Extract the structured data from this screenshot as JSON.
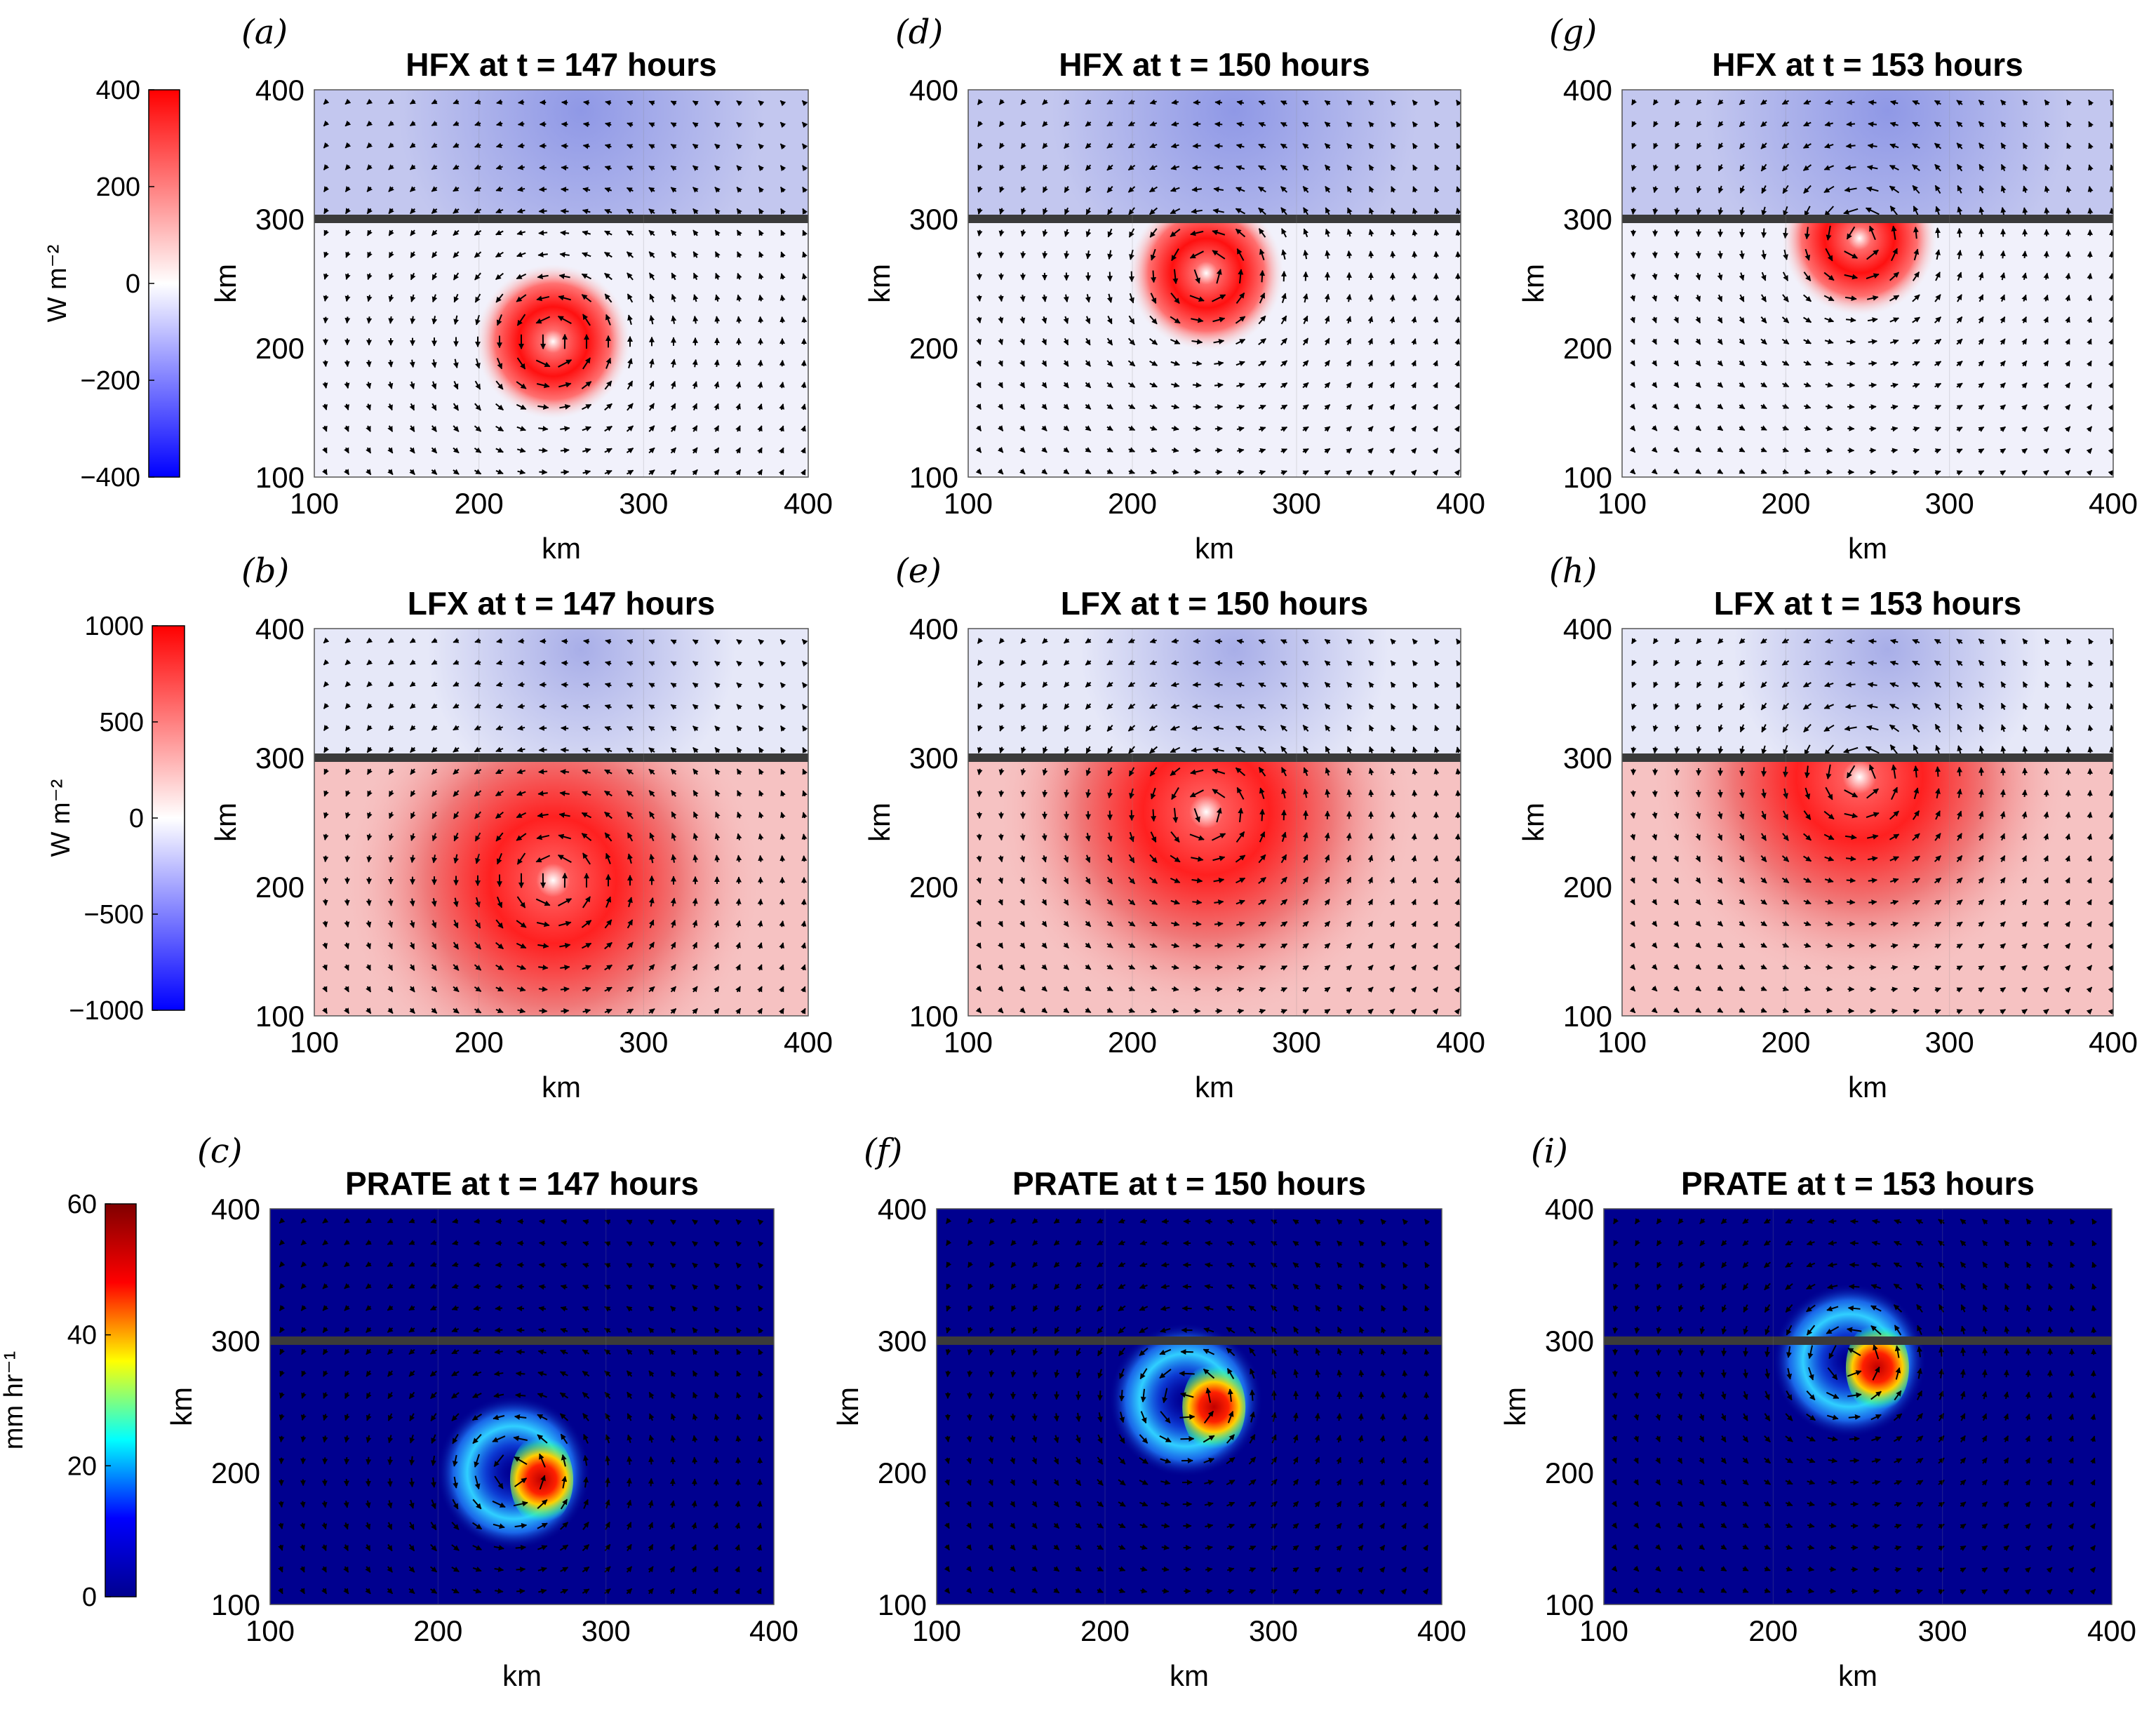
{
  "chart_data": [
    {
      "panel": "(a)",
      "type": "heatmap",
      "title": "HFX at t = 147 hours",
      "variable": "HFX",
      "time_hours": 147,
      "xlabel": "km",
      "ylabel": "km",
      "xlim": [
        100,
        400
      ],
      "ylim": [
        100,
        400
      ],
      "xticks": [
        "100",
        "200",
        "300",
        "400"
      ],
      "yticks": [
        "100",
        "200",
        "300",
        "400"
      ],
      "coast_y_km": 300,
      "vortex_center_km": [
        245,
        205
      ],
      "peak_value": 400
    },
    {
      "panel": "(b)",
      "type": "heatmap",
      "title": "LFX at t = 147 hours",
      "variable": "LFX",
      "time_hours": 147,
      "xlabel": "km",
      "ylabel": "km",
      "xlim": [
        100,
        400
      ],
      "ylim": [
        100,
        400
      ],
      "xticks": [
        "100",
        "200",
        "300",
        "400"
      ],
      "yticks": [
        "100",
        "200",
        "300",
        "400"
      ],
      "coast_y_km": 300,
      "vortex_center_km": [
        245,
        205
      ],
      "peak_value": 1000
    },
    {
      "panel": "(c)",
      "type": "heatmap",
      "title": "PRATE at t = 147 hours",
      "variable": "PRATE",
      "time_hours": 147,
      "xlabel": "km",
      "ylabel": "km",
      "xlim": [
        100,
        400
      ],
      "ylim": [
        100,
        400
      ],
      "xticks": [
        "100",
        "200",
        "300",
        "400"
      ],
      "yticks": [
        "100",
        "200",
        "300",
        "400"
      ],
      "coast_y_km": 300,
      "vortex_center_km": [
        245,
        200
      ],
      "peak_value": 60
    },
    {
      "panel": "(d)",
      "type": "heatmap",
      "title": "HFX at t = 150 hours",
      "variable": "HFX",
      "time_hours": 150,
      "xlabel": "km",
      "ylabel": "km",
      "xlim": [
        100,
        400
      ],
      "ylim": [
        100,
        400
      ],
      "xticks": [
        "100",
        "200",
        "300",
        "400"
      ],
      "yticks": [
        "100",
        "200",
        "300",
        "400"
      ],
      "coast_y_km": 300,
      "vortex_center_km": [
        245,
        258
      ],
      "peak_value": 400
    },
    {
      "panel": "(e)",
      "type": "heatmap",
      "title": "LFX at t = 150 hours",
      "variable": "LFX",
      "time_hours": 150,
      "xlabel": "km",
      "ylabel": "km",
      "xlim": [
        100,
        400
      ],
      "ylim": [
        100,
        400
      ],
      "xticks": [
        "100",
        "200",
        "300",
        "400"
      ],
      "yticks": [
        "100",
        "200",
        "300",
        "400"
      ],
      "coast_y_km": 300,
      "vortex_center_km": [
        245,
        258
      ],
      "peak_value": 1000
    },
    {
      "panel": "(f)",
      "type": "heatmap",
      "title": "PRATE at t = 150 hours",
      "variable": "PRATE",
      "time_hours": 150,
      "xlabel": "km",
      "ylabel": "km",
      "xlim": [
        100,
        400
      ],
      "ylim": [
        100,
        400
      ],
      "xticks": [
        "100",
        "200",
        "300",
        "400"
      ],
      "yticks": [
        "100",
        "200",
        "300",
        "400"
      ],
      "coast_y_km": 300,
      "vortex_center_km": [
        248,
        255
      ],
      "peak_value": 60
    },
    {
      "panel": "(g)",
      "type": "heatmap",
      "title": "HFX at t = 153 hours",
      "variable": "HFX",
      "time_hours": 153,
      "xlabel": "km",
      "ylabel": "km",
      "xlim": [
        100,
        400
      ],
      "ylim": [
        100,
        400
      ],
      "xticks": [
        "100",
        "200",
        "300",
        "400"
      ],
      "yticks": [
        "100",
        "200",
        "300",
        "400"
      ],
      "coast_y_km": 300,
      "vortex_center_km": [
        245,
        285
      ],
      "peak_value": 400
    },
    {
      "panel": "(h)",
      "type": "heatmap",
      "title": "LFX at t = 153 hours",
      "variable": "LFX",
      "time_hours": 153,
      "xlabel": "km",
      "ylabel": "km",
      "xlim": [
        100,
        400
      ],
      "ylim": [
        100,
        400
      ],
      "xticks": [
        "100",
        "200",
        "300",
        "400"
      ],
      "yticks": [
        "100",
        "200",
        "300",
        "400"
      ],
      "coast_y_km": 300,
      "vortex_center_km": [
        245,
        285
      ],
      "peak_value": 1000
    },
    {
      "panel": "(i)",
      "type": "heatmap",
      "title": "PRATE at t = 153 hours",
      "variable": "PRATE",
      "time_hours": 153,
      "xlabel": "km",
      "ylabel": "km",
      "xlim": [
        100,
        400
      ],
      "ylim": [
        100,
        400
      ],
      "xticks": [
        "100",
        "200",
        "300",
        "400"
      ],
      "yticks": [
        "100",
        "200",
        "300",
        "400"
      ],
      "coast_y_km": 300,
      "vortex_center_km": [
        245,
        285
      ],
      "peak_value": 60
    }
  ],
  "colorbars": [
    {
      "variable": "HFX",
      "label": "W m⁻²",
      "ticks": [
        "400",
        "200",
        "0",
        "−200",
        "−400"
      ],
      "range": [
        -400,
        400
      ],
      "colormap": "blue-white-red",
      "colors": [
        "#0000ff",
        "#ffffff",
        "#ff0000"
      ]
    },
    {
      "variable": "LFX",
      "label": "W m⁻²",
      "ticks": [
        "1000",
        "500",
        "0",
        "−500",
        "−1000"
      ],
      "range": [
        -1000,
        1000
      ],
      "colormap": "blue-white-red",
      "colors": [
        "#0000ff",
        "#ffffff",
        "#ff0000"
      ]
    },
    {
      "variable": "PRATE",
      "label": "mm hr⁻¹",
      "ticks": [
        "60",
        "40",
        "20",
        "0"
      ],
      "range": [
        0,
        60
      ],
      "colormap": "jet",
      "colors": [
        "#00008f",
        "#0000ff",
        "#00ffff",
        "#ffff00",
        "#ff0000",
        "#800000"
      ]
    }
  ]
}
